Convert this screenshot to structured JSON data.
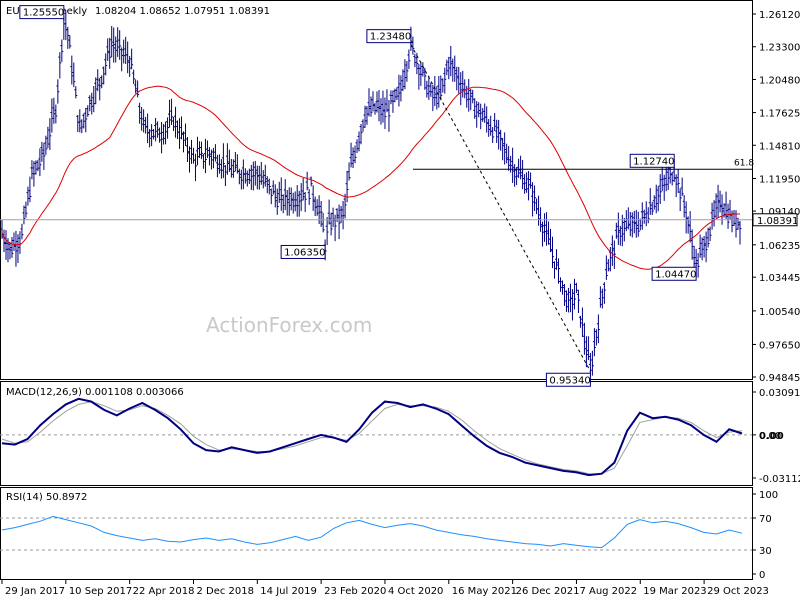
{
  "header": {
    "symbol": "EURUSD,Weekly",
    "ohlc": "1.08204 1.08652 1.07951 1.08391"
  },
  "watermark": "ActionForex.com",
  "colors": {
    "bar": "#000080",
    "ma": "#e00000",
    "macd_line": "#000080",
    "macd_signal": "#a0a0a0",
    "rsi": "#1e90ff",
    "grid_dash": "#9a9a9a",
    "current_price_line": "#a0a0a0",
    "fib_line": "#000000",
    "trend_line": "#000000"
  },
  "chart_data": [
    {
      "type": "ohlc",
      "panel": "price",
      "yticks": [
        "1.26120",
        "1.23300",
        "1.20480",
        "1.17625",
        "1.14810",
        "1.11950",
        "1.09140",
        "1.06235",
        "1.03445",
        "1.00540",
        "0.97650",
        "0.94845"
      ],
      "ylim": [
        0.94845,
        1.2612
      ],
      "current_label": "1.08391",
      "fib_label": "61.8",
      "fib_level": 1.1274,
      "annotations": [
        {
          "text": "1.25550",
          "date": "2017-09-03",
          "value": 1.2555,
          "pos": "above"
        },
        {
          "text": "1.23480",
          "date": "2021-01-03",
          "value": 1.2348,
          "pos": "above"
        },
        {
          "text": "1.06350",
          "date": "2020-03-08",
          "value": 1.0635,
          "pos": "below"
        },
        {
          "text": "1.12740",
          "date": "2023-07-16",
          "value": 1.1274,
          "pos": "above"
        },
        {
          "text": "1.04470",
          "date": "2023-10-01",
          "value": 1.0447,
          "pos": "below"
        },
        {
          "text": "0.95340",
          "date": "2022-09-25",
          "value": 0.9534,
          "pos": "below"
        }
      ],
      "trend_line": [
        {
          "date": "2021-01-03",
          "value": 1.2348
        },
        {
          "date": "2022-09-25",
          "value": 0.9534
        }
      ],
      "ma_label": "",
      "bars_series": [
        [
          "2017-01-29",
          1.073
        ],
        [
          "2017-02-26",
          1.058
        ],
        [
          "2017-04-09",
          1.071
        ],
        [
          "2017-05-14",
          1.121
        ],
        [
          "2017-06-25",
          1.141
        ],
        [
          "2017-08-06",
          1.181
        ],
        [
          "2017-09-03",
          1.2555
        ],
        [
          "2017-09-17",
          1.245
        ],
        [
          "2017-10-29",
          1.161
        ],
        [
          "2017-11-26",
          1.181
        ],
        [
          "2018-01-07",
          1.203
        ],
        [
          "2018-02-18",
          1.236
        ],
        [
          "2018-04-22",
          1.222
        ],
        [
          "2018-06-10",
          1.163
        ],
        [
          "2018-08-05",
          1.158
        ],
        [
          "2018-09-23",
          1.171
        ],
        [
          "2018-12-02",
          1.136
        ],
        [
          "2019-01-27",
          1.141
        ],
        [
          "2019-04-21",
          1.126
        ],
        [
          "2019-07-14",
          1.124
        ],
        [
          "2019-09-29",
          1.101
        ],
        [
          "2019-11-24",
          1.103
        ],
        [
          "2020-01-19",
          1.111
        ],
        [
          "2020-02-23",
          1.087
        ],
        [
          "2020-03-08",
          1.0635
        ],
        [
          "2020-03-22",
          1.081
        ],
        [
          "2020-05-10",
          1.087
        ],
        [
          "2020-06-07",
          1.131
        ],
        [
          "2020-07-26",
          1.176
        ],
        [
          "2020-09-06",
          1.181
        ],
        [
          "2020-10-04",
          1.176
        ],
        [
          "2020-11-22",
          1.191
        ],
        [
          "2021-01-03",
          1.2348
        ],
        [
          "2021-03-14",
          1.191
        ],
        [
          "2021-04-18",
          1.191
        ],
        [
          "2021-05-16",
          1.221
        ],
        [
          "2021-08-15",
          1.181
        ],
        [
          "2021-10-24",
          1.161
        ],
        [
          "2021-12-26",
          1.131
        ],
        [
          "2022-02-27",
          1.111
        ],
        [
          "2022-04-24",
          1.071
        ],
        [
          "2022-07-10",
          1.011
        ],
        [
          "2022-08-07",
          1.021
        ],
        [
          "2022-09-25",
          0.9534
        ],
        [
          "2022-11-20",
          1.041
        ],
        [
          "2023-01-08",
          1.076
        ],
        [
          "2023-03-19",
          1.081
        ],
        [
          "2023-05-07",
          1.101
        ],
        [
          "2023-07-16",
          1.1274
        ],
        [
          "2023-08-27",
          1.091
        ],
        [
          "2023-10-01",
          1.0447
        ],
        [
          "2023-10-29",
          1.061
        ],
        [
          "2023-12-24",
          1.101
        ],
        [
          "2024-02-11",
          1.081
        ],
        [
          "2024-03-03",
          1.0839
        ]
      ]
    },
    {
      "type": "line",
      "panel": "macd",
      "title": "MACD(12,26,9) 0.001108 0.003066",
      "yticks": [
        "0.030916",
        "0.00",
        "-0.031124"
      ],
      "current_label": "0.00",
      "ylim": [
        -0.031124,
        0.030916
      ],
      "series": [
        {
          "name": "",
          "values": [
            -0.006,
            -0.007,
            -0.003,
            0.007,
            0.015,
            0.022,
            0.026,
            0.024,
            0.018,
            0.014,
            0.019,
            0.023,
            0.018,
            0.012,
            0.004,
            -0.006,
            -0.011,
            -0.012,
            -0.009,
            -0.011,
            -0.013,
            -0.012,
            -0.009,
            -0.006,
            -0.003,
            0.0,
            -0.002,
            -0.005,
            0.004,
            0.016,
            0.024,
            0.023,
            0.02,
            0.022,
            0.019,
            0.015,
            0.007,
            -0.001,
            -0.008,
            -0.013,
            -0.016,
            -0.02,
            -0.022,
            -0.024,
            -0.026,
            -0.027,
            -0.029,
            -0.028,
            -0.02,
            0.003,
            0.016,
            0.012,
            0.013,
            0.011,
            0.007,
            0.0,
            -0.005,
            0.004,
            0.001
          ]
        },
        {
          "name": "",
          "values": [
            -0.003,
            -0.006,
            -0.005,
            0.002,
            0.01,
            0.017,
            0.022,
            0.024,
            0.021,
            0.017,
            0.018,
            0.021,
            0.019,
            0.014,
            0.008,
            -0.001,
            -0.007,
            -0.011,
            -0.01,
            -0.011,
            -0.012,
            -0.012,
            -0.01,
            -0.008,
            -0.005,
            -0.002,
            -0.002,
            -0.004,
            0.001,
            0.01,
            0.019,
            0.022,
            0.021,
            0.021,
            0.02,
            0.017,
            0.011,
            0.003,
            -0.004,
            -0.01,
            -0.014,
            -0.018,
            -0.021,
            -0.023,
            -0.025,
            -0.026,
            -0.028,
            -0.028,
            -0.024,
            -0.008,
            0.009,
            0.011,
            0.013,
            0.012,
            0.009,
            0.003,
            -0.002,
            0.002,
            0.003
          ]
        }
      ]
    },
    {
      "type": "line",
      "panel": "rsi",
      "title": "RSI(14) 50.8972",
      "yticks": [
        "100",
        "70",
        "30",
        "0"
      ],
      "ylim": [
        0,
        100
      ],
      "series": [
        {
          "name": "",
          "values": [
            55,
            58,
            62,
            66,
            72,
            68,
            64,
            60,
            52,
            48,
            45,
            42,
            44,
            41,
            40,
            43,
            45,
            42,
            44,
            40,
            37,
            39,
            43,
            47,
            42,
            46,
            57,
            64,
            67,
            62,
            58,
            61,
            63,
            60,
            55,
            52,
            49,
            47,
            44,
            42,
            40,
            38,
            37,
            35,
            38,
            36,
            34,
            33,
            45,
            62,
            68,
            64,
            66,
            63,
            58,
            52,
            50,
            55,
            51
          ]
        }
      ]
    }
  ],
  "x_axis": {
    "labels": [
      {
        "text": "29 Jan 2017",
        "date": "2017-01-29"
      },
      {
        "text": "10 Sep 2017",
        "date": "2017-09-10"
      },
      {
        "text": "22 Apr 2018",
        "date": "2018-04-22"
      },
      {
        "text": "2 Dec 2018",
        "date": "2018-12-02"
      },
      {
        "text": "14 Jul 2019",
        "date": "2019-07-14"
      },
      {
        "text": "23 Feb 2020",
        "date": "2020-02-23"
      },
      {
        "text": "4 Oct 2020",
        "date": "2020-10-04"
      },
      {
        "text": "16 May 2021",
        "date": "2021-05-16"
      },
      {
        "text": "26 Dec 2021",
        "date": "2021-12-26"
      },
      {
        "text": "7 Aug 2022",
        "date": "2022-08-07"
      },
      {
        "text": "19 Mar 2023",
        "date": "2023-03-19"
      },
      {
        "text": "29 Oct 2023",
        "date": "2023-10-29"
      }
    ]
  }
}
